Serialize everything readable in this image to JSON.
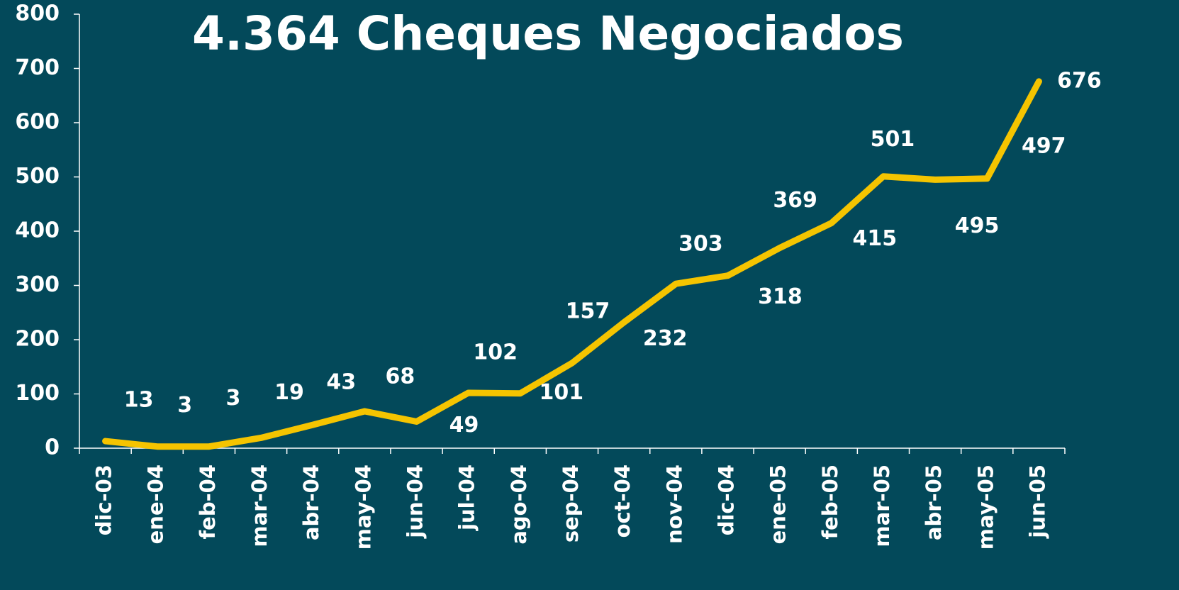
{
  "chart_data": {
    "type": "line",
    "title": "4.364 Cheques Negociados",
    "categories": [
      "dic-03",
      "ene-04",
      "feb-04",
      "mar-04",
      "abr-04",
      "may-04",
      "jun-04",
      "jul-04",
      "ago-04",
      "sep-04",
      "oct-04",
      "nov-04",
      "dic-04",
      "ene-05",
      "feb-05",
      "mar-05",
      "abr-05",
      "may-05",
      "jun-05"
    ],
    "series": [
      {
        "name": "Cheques",
        "color": "#f5c400",
        "values": [
          13,
          3,
          3,
          19,
          43,
          68,
          49,
          102,
          101,
          157,
          232,
          303,
          318,
          369,
          415,
          501,
          495,
          497,
          676
        ]
      }
    ],
    "ylim": [
      0,
      800
    ],
    "yticks": [
      0,
      100,
      200,
      300,
      400,
      500,
      600,
      700,
      800
    ],
    "grid": false
  }
}
